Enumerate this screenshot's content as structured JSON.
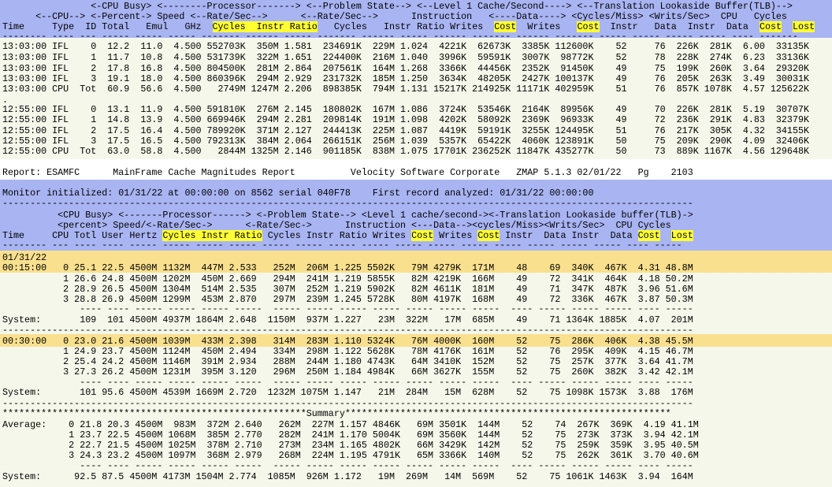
{
  "top": {
    "header": [
      "                <-CPU Busy> <--------Processor-------> <--Problem State--> <--Level 1 Cache/Second----> <--Translation Lookaside Buffer(TLB)-->",
      "      <--CPU--> <-Percent-> Speed <--Rate/Sec--> <--Rate/Sec--> Instruction <----Data----> <Cycles/Miss> <Writs/Sec> CPU Cycles",
      "Time Type ID Total Emul GHz Cycles Instr Ratio Cycles Instr Ratio Writes Cost Writes Cost Instr Data Instr Data Cost Lost"
    ],
    "h1": "                <-CPU Busy> <--------Processor-------> <--Problem State--> <--Level 1 Cache/Second----> <--Translation Lookaside Buffer(TLB)-->",
    "h2": "      <--CPU--> <-Percent-> Speed <--Rate/Sec-->      <--Rate/Sec-->      Instruction   <----Data----> <Cycles/Miss> <Writs/Sec>  CPU   Cycles",
    "h3a": "Time     Type  ID Total   Emul   GHz  ",
    "h3_cycles": "Cycles",
    "h3_sp1": "  ",
    "h3_instr": "Instr",
    "h3_sp2": " ",
    "h3_ratio": "Ratio",
    "h3b": "   Cycles   Instr Ratio Writes  ",
    "h3_cost1": "Cost",
    "h3c": "  Writes   ",
    "h3_cost2": "Cost",
    "h3d": "  Instr   Data  Instr  Data  ",
    "h3_cost3": "Cost",
    "h3_sp3": "  ",
    "h3_lost": "Lost",
    "dash": "-------- ---- --- ----- ----- ----- ------- ------ ----- ------- ------ ----- ------ ------- ------ ------- ----- ----- ----- ----- ---- -------",
    "rows": [
      "13:03:00 IFL    0  12.2  11.0  4.500 552703K  350M 1.581  234691K  229M 1.024  4221K  62673K  3385K 112600K    52     76  226K  281K  6.00  33135K",
      "13:03:00 IFL    1  11.7  10.8  4.500 531739K  322M 1.651  224400K  216M 1.040  3996K  59591K  3007K  98772K    52     78  228K  274K  6.23  33136K",
      "13:03:00 IFL    2  17.8  16.8  4.500 804500K  281M 2.864  207561K  164M 1.268  3366K  44456K  2352K  91450K    49     75  199K  260K  3.64  29320K",
      "13:03:00 IFL    3  19.1  18.0  4.500 860396K  294M 2.929  231732K  185M 1.250  3634K  48205K  2427K 100137K    49     76  205K  263K  3.49  30031K",
      "13:03:00 CPU  Tot  60.9  56.6  4.500   2749M 1247M 2.206  898385K  794M 1.131 15217K 214925K 11171K 402959K    51     76  857K 1078K  4.57 125622K",
      ".",
      "12:55:00 IFL    0  13.1  11.9  4.500 591810K  276M 2.145  180802K  167M 1.086  3724K  53546K  2164K  89956K    49     70  226K  281K  5.19  30707K",
      "12:55:00 IFL    1  14.8  13.9  4.500 669946K  294M 2.281  209814K  191M 1.098  4202K  58092K  2369K  96933K    49     72  236K  291K  4.83  32379K",
      "12:55:00 IFL    2  17.5  16.4  4.500 789920K  371M 2.127  244413K  225M 1.087  4419K  59191K  3255K 124495K    51     76  217K  305K  4.32  34155K",
      "12:55:00 IFL    3  17.5  16.5  4.500 792313K  384M 2.064  266151K  256M 1.039  5357K  65422K  4060K 123891K    50     75  209K  290K  4.09  32406K",
      "12:55:00 CPU  Tot  63.0  58.8  4.500   2844M 1325M 2.146  901185K  838M 1.075 17701K 236252K 11847K 435277K    50     73  889K 1167K  4.56 129648K"
    ]
  },
  "report_line": "Report: ESAMFC      MainFrame Cache Magnitudes Report          Velocity Software Corporate   ZMAP 5.1.3 02/01/22   Pg    2103",
  "monitor": {
    "line1": "Monitor initialized: 01/31/22 at 00:00:00 on 8562 serial 040F78    First record analyzed: 01/31/22 00:00:00",
    "rule": "-----------------------------------------------------------------------------------------------------------------------------",
    "h1": "          <CPU Busy> <-------Processor------> <-Problem State--> <Level 1 cache/second-><-Translation Lookaside buffer(TLB)->",
    "h2": "          <percent> Speed/<-Rate/Sec->      <-Rate/Sec->      Instruction <---Data--><cycles/Miss><Writs/Sec>  CPU Cycles",
    "h3a": "Time     CPU Totl User Hertz ",
    "h3_cycles": "Cycles",
    "h3_sp1": " ",
    "h3_instr": "Instr",
    "h3_sp2": " ",
    "h3_ratio": "Ratio",
    "h3b": " Cycles Instr Ratio Writes ",
    "h3_cost1": "Cost",
    "h3c": " Writes ",
    "h3_cost2": "Cost",
    "h3d": " Instr  Data Instr  Data ",
    "h3_cost3": "Cost",
    "h3_sp3": "  ",
    "h3_lost": "Lost",
    "dash": "-------- --- ---- ---- ----- ----- ----- ----- ----- ----- ----- ----- ----- ----- ----- ----- ----- ----- ----- ---- -----"
  },
  "sections": [
    {
      "date": "01/31/22",
      "rows": [
        "00:15:00   0 25.1 22.5 4500M 1132M  447M 2.533   252M  206M 1.225 5502K   79M 4279K  171M    48    69  340K  467K  4.31 48.8M",
        "           1 26.6 24.8 4500M 1202M  450M 2.669   294M  241M 1.219 5855K   82M 4219K  166M    49    72  341K  464K  4.18 50.2M",
        "           2 28.9 26.5 4500M 1304M  514M 2.535   307M  252M 1.219 5902K   82M 4611K  181M    49    71  347K  487K  3.96 51.6M",
        "           3 28.8 26.9 4500M 1299M  453M 2.870   297M  239M 1.245 5728K   80M 4197K  168M    49    72  336K  467K  3.87 50.3M"
      ],
      "sum_dash": "              ---- ---- ----- ----- ----- -----  ----- ----- ----- ----- ----- ----- -----  ---- ----- ----- ----- ---- -----",
      "system": "System:       109  101 4500M 4937M 1864M 2.648  1150M  937M 1.227   23M  322M   17M  685M    49    71 1364K 1885K  4.07  201M"
    },
    {
      "rows": [
        "00:30:00   0 23.0 21.6 4500M 1039M  433M 2.398   314M  283M 1.110 5324K   76M 4000K  160M    52    75  286K  406K  4.38 45.5M",
        "           1 24.9 23.7 4500M 1124M  450M 2.494   334M  298M 1.122 5628K   78M 4176K  161M    52    76  295K  409K  4.15 46.7M",
        "           2 25.4 24.2 4500M 1146M  391M 2.934   288M  244M 1.180 4743K   64M 3410K  152M    52    75  257K  377K  3.64 41.7M",
        "           3 27.3 26.2 4500M 1231M  395M 3.120   296M  250M 1.184 4984K   66M 3627K  155M    52    75  260K  382K  3.42 42.1M"
      ],
      "sum_dash": "              ---- ---- ----- ----- ----- -----  ----- ----- ----- ----- ----- ----- -----  ---- ----- ----- ----- ---- -----",
      "system": "System:       101 95.6 4500M 4539M 1669M 2.720  1232M 1075M 1.147   21M  284M   15M  628M    52    75 1098K 1573K  3.88  176M"
    }
  ],
  "summary": {
    "title": "*******************************************************Summary***********************************************************",
    "rows": [
      "Average:    0 21.8 20.3 4500M  983M  372M 2.640   262M  227M 1.157 4846K   69M 3501K  144M    52    74  267K  369K  4.19 41.1M",
      "            1 23.7 22.5 4500M 1068M  385M 2.770   282M  241M 1.170 5004K   69M 3560K  144M    52    75  273K  373K  3.94 42.1M",
      "            2 22.7 21.5 4500M 1025M  378M 2.710   273M  234M 1.165 4802K   66M 3429K  142M    52    75  259K  359K  3.95 40.5M",
      "            3 24.3 23.2 4500M 1097M  368M 2.979   268M  224M 1.195 4791K   65M 3366K  140M    52    75  262K  361K  3.70 40.6M"
    ],
    "sum_dash": "              ---- ---- ----- ----- ----- -----  ----- ----- ----- ----- ----- ----- -----  ---- ----- ----- ----- ---- -----",
    "system": "System:      92.5 87.5 4500M 4173M 1504M 2.774  1085M  926M 1.172   19M  269M   14M  569M    52    75 1061K 1463K  3.94  164M"
  },
  "section_rule": "-----------------------------------------------------------------------------------------------------------------------------",
  "colors": {
    "header_band": "#a9b4f2",
    "body_band": "#f5f7ea",
    "highlight_row": "#f9e08e",
    "highlight_label": "#ffff33"
  }
}
